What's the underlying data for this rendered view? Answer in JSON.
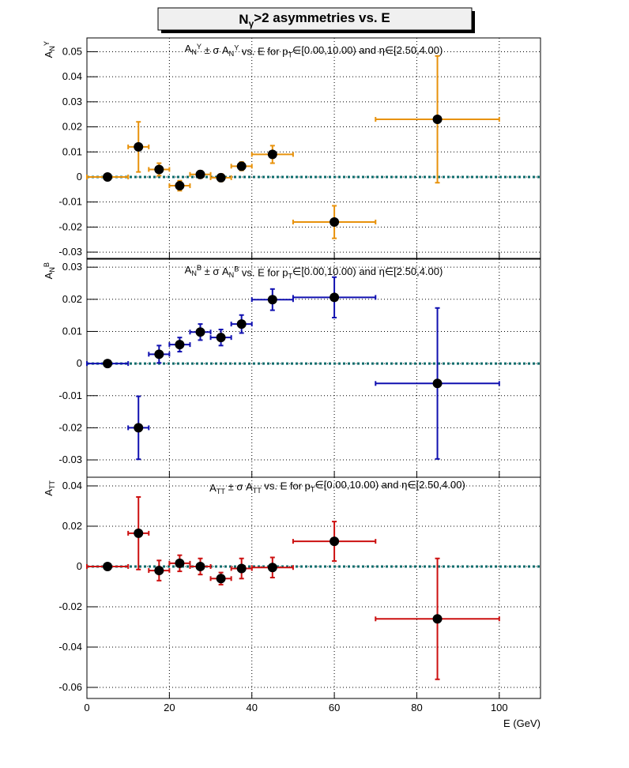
{
  "title": "N_{γ}>2 asymmetries vs. E",
  "chart_data": [
    {
      "type": "scatter",
      "title": "A_{N}^{Y} ± σ A_{N}^{Y} vs. E for p_{T}∈[0.00,10.00) and η∈[2.50,4.00)",
      "y_label": "A_{N}^{Y}",
      "x": [
        5,
        12.5,
        17.5,
        22.5,
        27.5,
        32.5,
        37.5,
        45,
        60,
        85
      ],
      "x_err": [
        5,
        2.5,
        2.5,
        2.5,
        2.5,
        2.5,
        2.5,
        5,
        10,
        15
      ],
      "values": [
        0,
        0.012,
        0.003,
        -0.0035,
        0.001,
        -0.0003,
        0.0043,
        0.009,
        -0.018,
        0.023
      ],
      "y_err": [
        0.0003,
        0.01,
        0.0025,
        0.002,
        0.0015,
        0.0015,
        0.0017,
        0.0035,
        0.0065,
        0.0253
      ],
      "color": "#e8920c",
      "xlim": [
        0,
        110
      ],
      "xticks": [
        0,
        20,
        40,
        60,
        80,
        100
      ],
      "ylim": [
        -0.0325,
        0.0555
      ],
      "yticks": [
        -0.03,
        -0.02,
        -0.01,
        0,
        0.01,
        0.02,
        0.03,
        0.04,
        0.05
      ],
      "grid": true,
      "hline": 0,
      "hline_color": "#0d6b6b"
    },
    {
      "type": "scatter",
      "title": "A_{N}^{B} ± σ A_{N}^{B} vs. E for p_{T}∈[0.00,10.00) and η∈[2.50,4.00)",
      "y_label": "A_{N}^{B}",
      "x": [
        5,
        12.5,
        17.5,
        22.5,
        27.5,
        32.5,
        37.5,
        45,
        60,
        85
      ],
      "x_err": [
        5,
        2.5,
        2.5,
        2.5,
        2.5,
        2.5,
        2.5,
        5,
        10,
        15
      ],
      "values": [
        0,
        -0.02,
        0.0029,
        0.0059,
        0.0098,
        0.0081,
        0.0123,
        0.0199,
        0.0206,
        -0.0062
      ],
      "y_err": [
        0.0003,
        0.0098,
        0.0027,
        0.0022,
        0.0025,
        0.0025,
        0.0028,
        0.0033,
        0.0063,
        0.0235
      ],
      "color": "#1010b0",
      "xlim": [
        0,
        110
      ],
      "xticks": [
        0,
        20,
        40,
        60,
        80,
        100
      ],
      "ylim": [
        -0.0354,
        0.0325
      ],
      "yticks": [
        -0.03,
        -0.02,
        -0.01,
        0,
        0.01,
        0.02,
        0.03
      ],
      "grid": true,
      "hline": 0,
      "hline_color": "#0d6b6b"
    },
    {
      "type": "scatter",
      "title": "A_{TT} ± σ A_{TT} vs. E for p_{T}∈[0.00,10.00) and η∈[2.50,4.00)",
      "y_label": "A_{TT}",
      "x_label": "E (GeV)",
      "x": [
        5,
        12.5,
        17.5,
        22.5,
        27.5,
        32.5,
        37.5,
        45,
        60,
        85
      ],
      "x_err": [
        5,
        2.5,
        2.5,
        2.5,
        2.5,
        2.5,
        2.5,
        5,
        10,
        15
      ],
      "values": [
        0,
        0.0165,
        -0.002,
        0.0016,
        0,
        -0.006,
        -0.001,
        -0.0005,
        0.0125,
        -0.026
      ],
      "y_err": [
        0.0003,
        0.018,
        0.005,
        0.004,
        0.004,
        0.003,
        0.005,
        0.005,
        0.0098,
        0.03
      ],
      "color": "#cc1010",
      "xlim": [
        0,
        110
      ],
      "xticks": [
        0,
        20,
        40,
        60,
        80,
        100
      ],
      "ylim": [
        -0.0655,
        0.0443
      ],
      "yticks": [
        -0.06,
        -0.04,
        -0.02,
        0,
        0.02,
        0.04
      ],
      "grid": true,
      "hline": 0,
      "hline_color": "#0d6b6b"
    }
  ]
}
